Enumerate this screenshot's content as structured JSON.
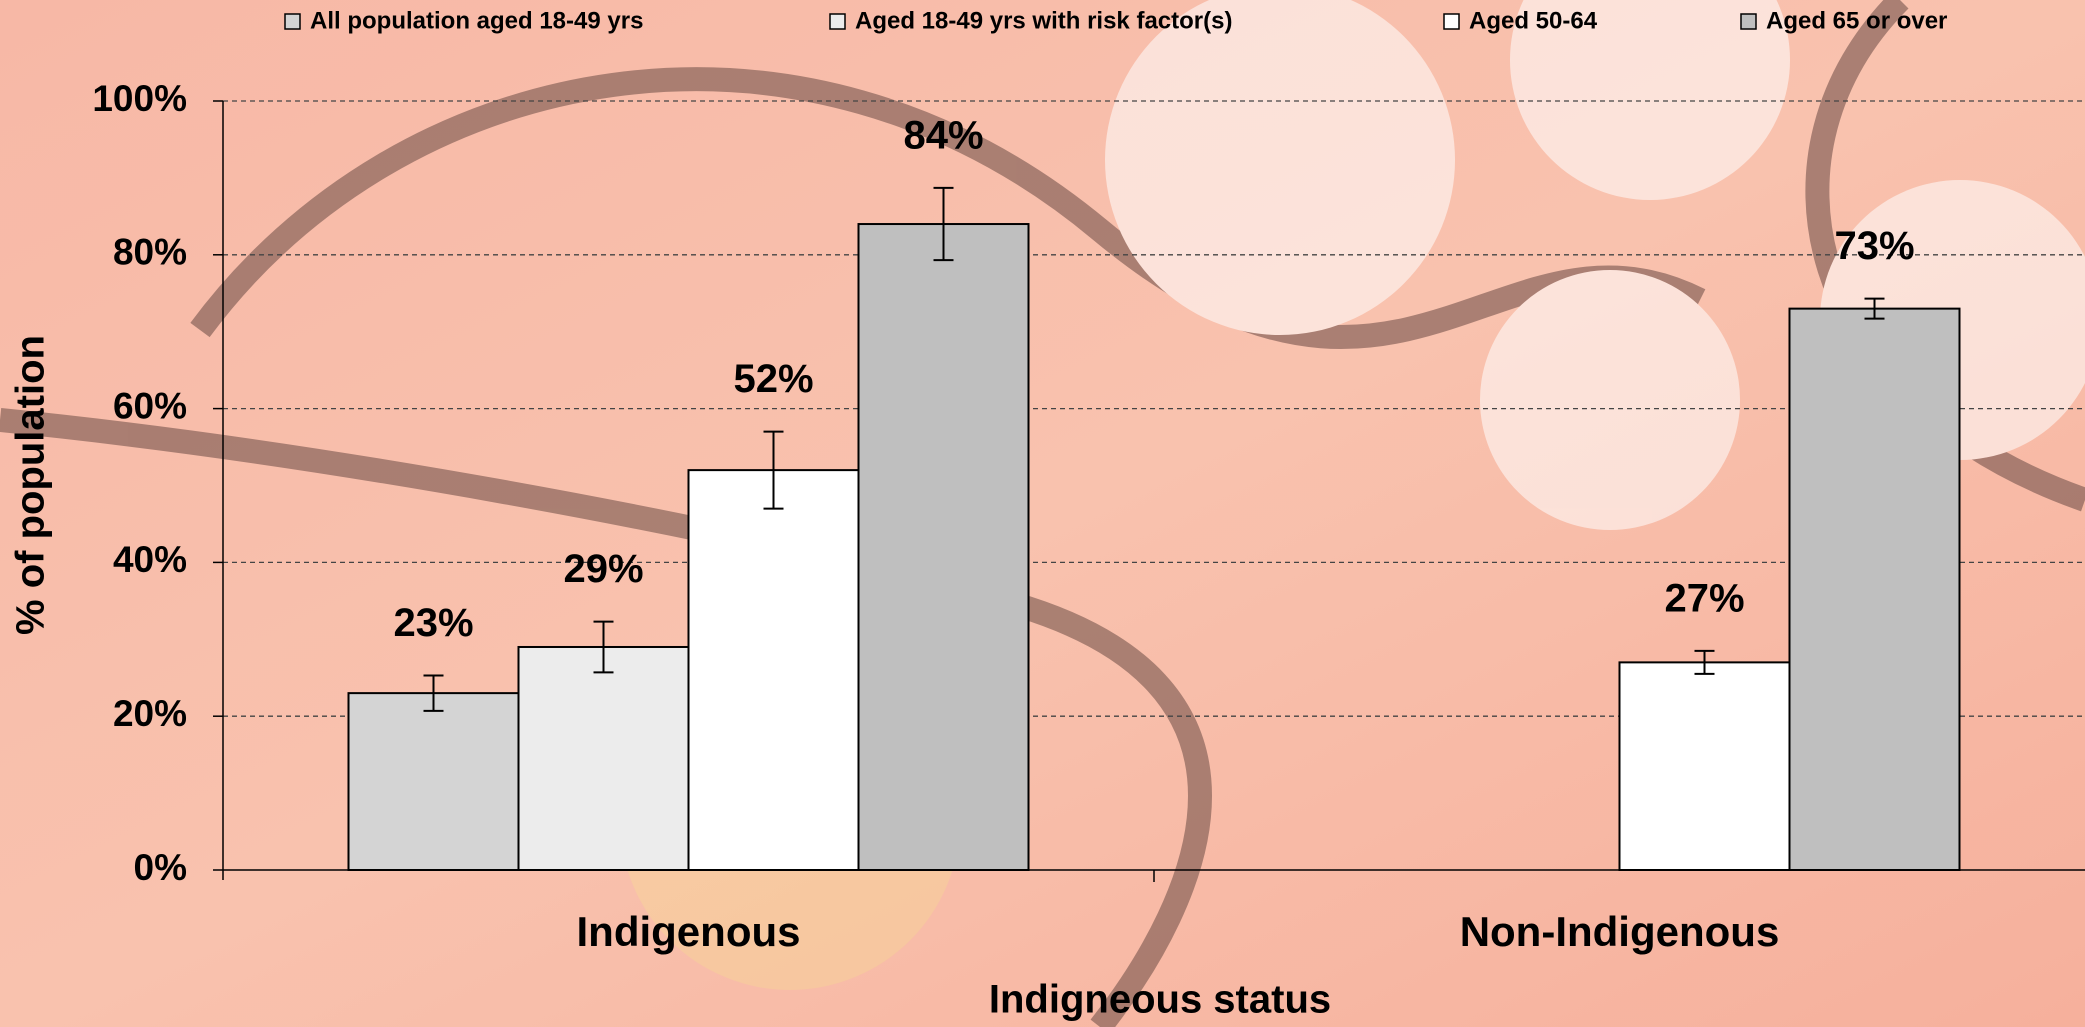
{
  "chart_data": {
    "type": "bar",
    "x_label": "Indigneous status",
    "y_label": "% of population",
    "categories": [
      "Indigenous",
      "Non-Indigenous"
    ],
    "series": [
      {
        "name": "All population aged 18-49 yrs",
        "color": "#d4d4d4",
        "values": [
          23,
          null
        ],
        "value_labels": [
          "23%",
          null
        ],
        "errors": [
          2.3,
          null
        ]
      },
      {
        "name": "Aged 18-49 yrs with risk factor(s)",
        "color": "#ececec",
        "values": [
          29,
          null
        ],
        "value_labels": [
          "29%",
          null
        ],
        "errors": [
          3.3,
          null
        ]
      },
      {
        "name": "Aged 50-64",
        "color": "#ffffff",
        "values": [
          52,
          27
        ],
        "value_labels": [
          "52%",
          "27%"
        ],
        "errors": [
          5,
          1.5
        ]
      },
      {
        "name": "Aged 65 or over",
        "color": "#bfbfbf",
        "values": [
          84,
          73
        ],
        "value_labels": [
          "84%",
          "73%"
        ],
        "errors": [
          4.7,
          1.3
        ]
      }
    ],
    "ylim": [
      0,
      100
    ],
    "yticks": [
      {
        "value": 0,
        "label": "0%"
      },
      {
        "value": 20,
        "label": "20%"
      },
      {
        "value": 40,
        "label": "40%"
      },
      {
        "value": 60,
        "label": "60%"
      },
      {
        "value": 80,
        "label": "80%"
      },
      {
        "value": 100,
        "label": "100%"
      }
    ],
    "grid": true,
    "legend": "top"
  }
}
